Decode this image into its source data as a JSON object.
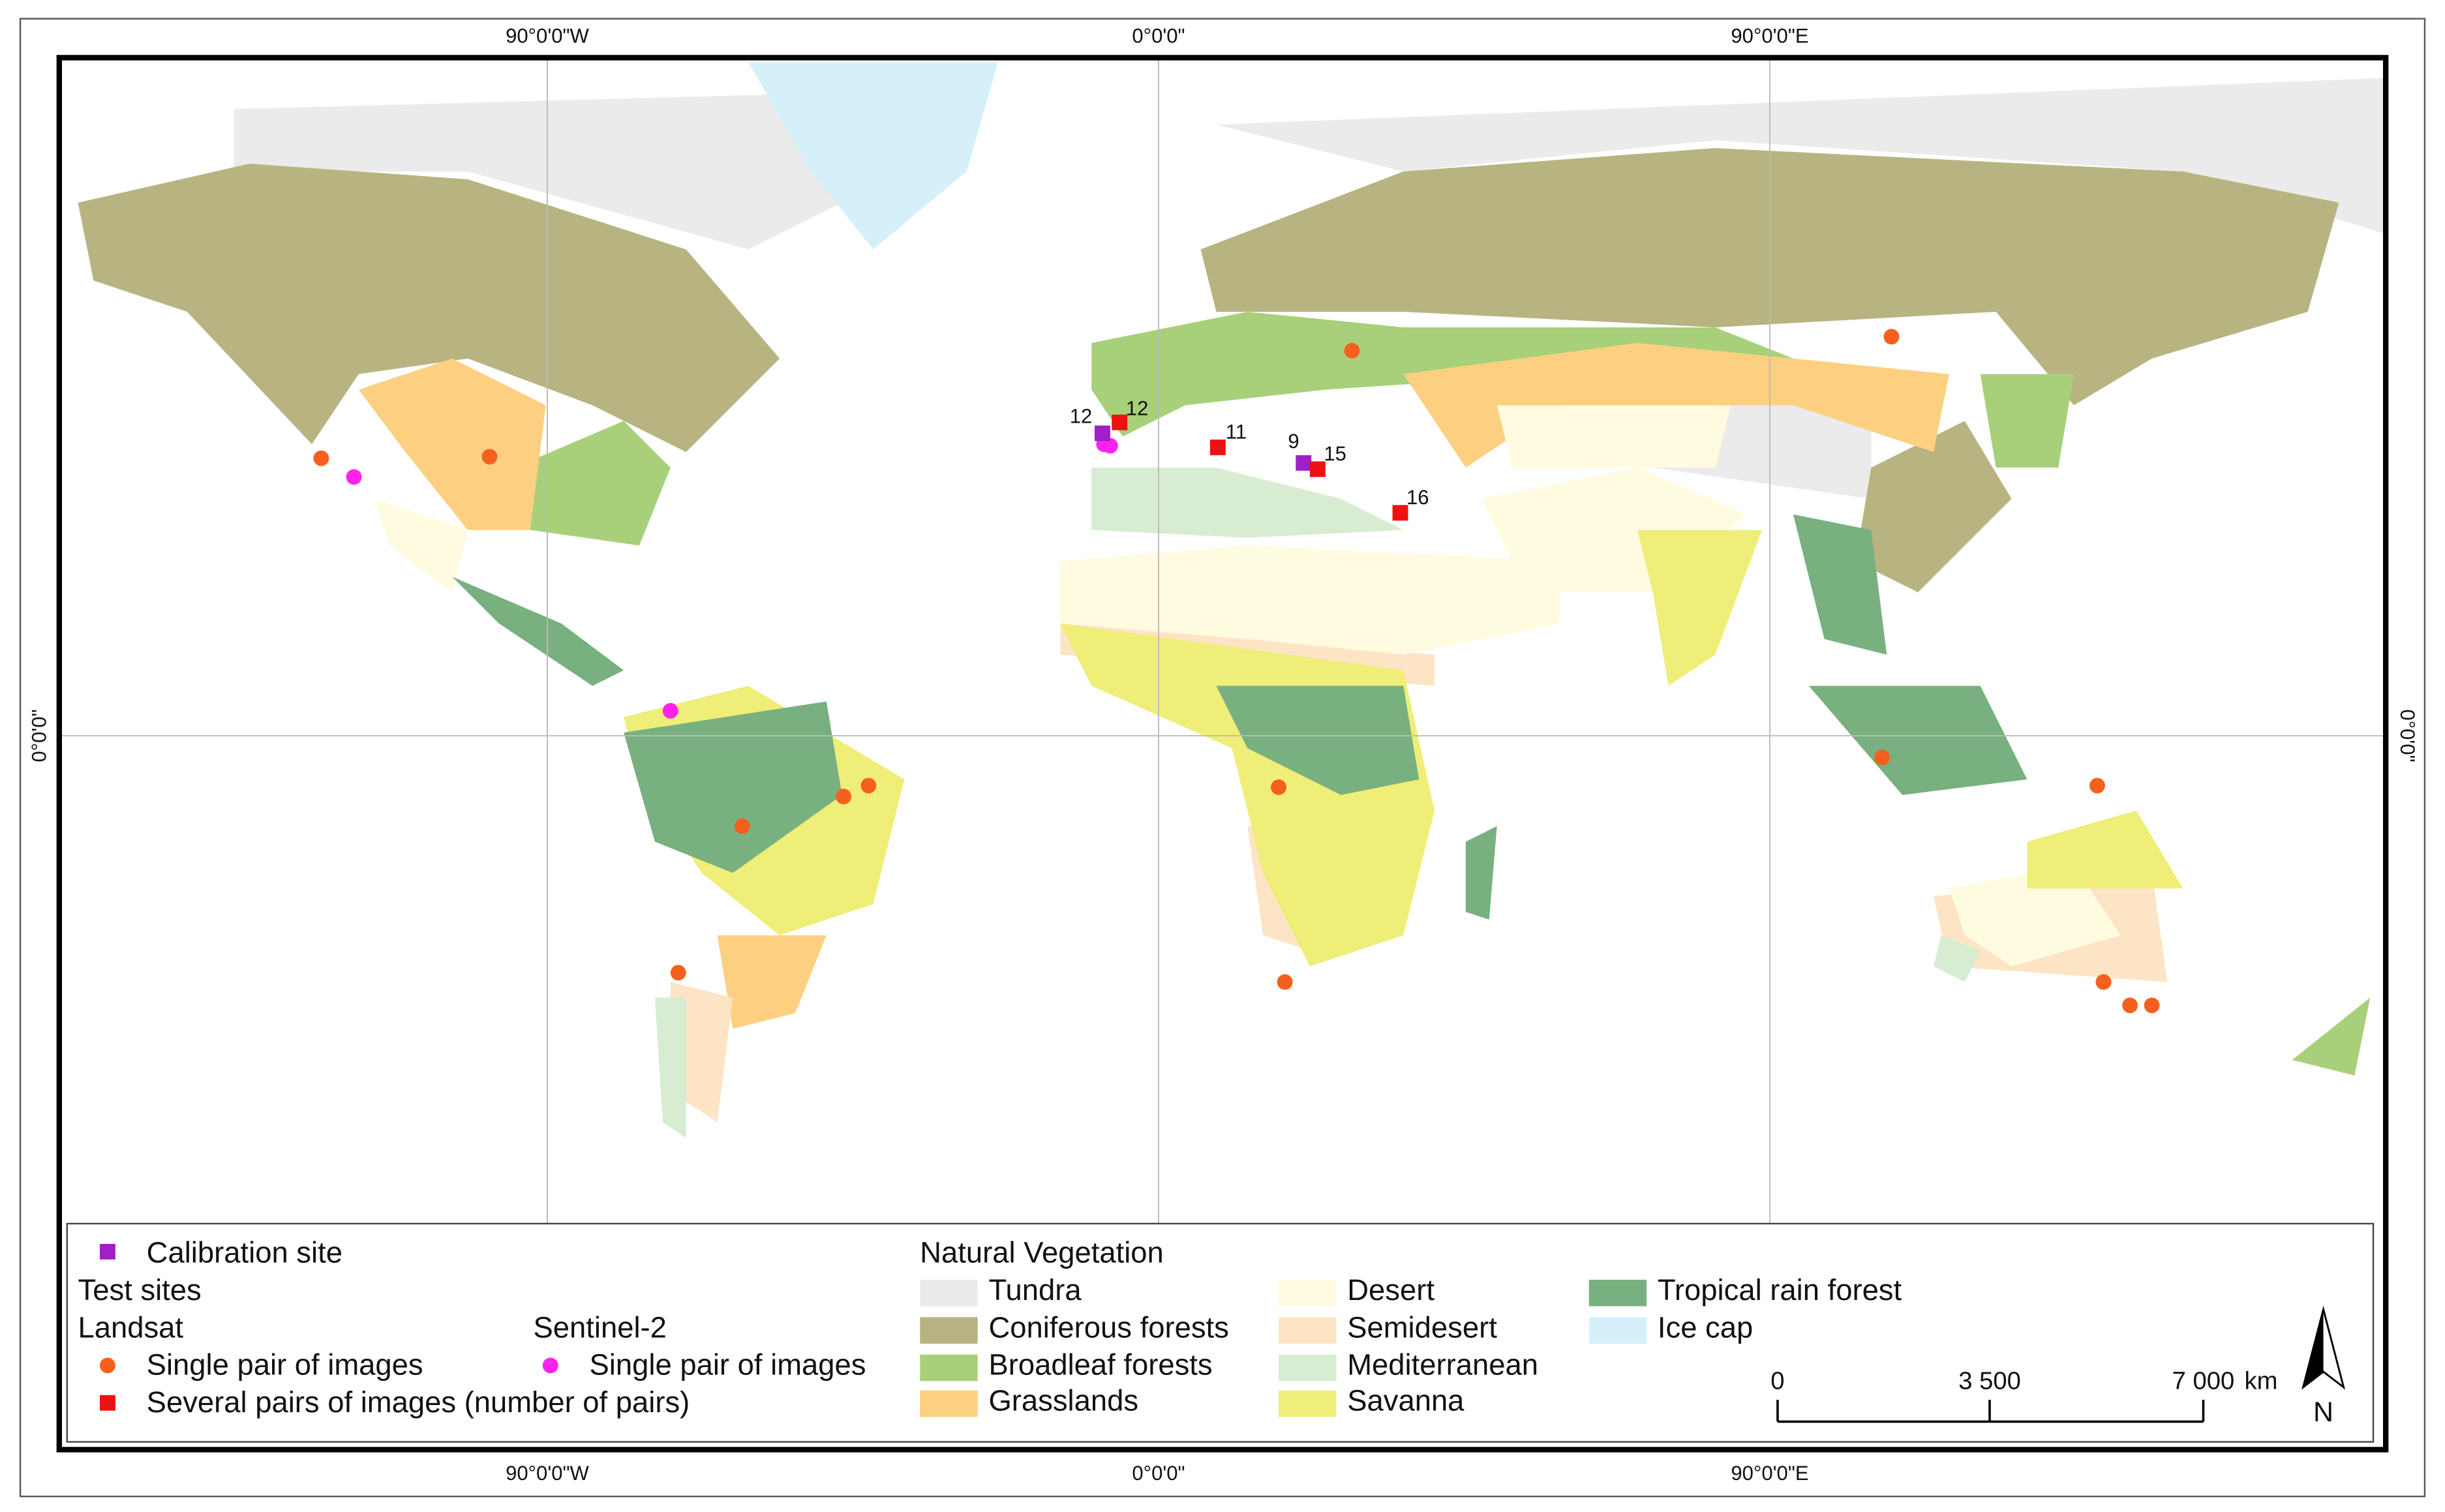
{
  "graticule": {
    "top": [
      "90°0'0\"W",
      "0°0'0\"",
      "90°0'0\"E"
    ],
    "bottom": [
      "90°0'0\"W",
      "0°0'0\"",
      "90°0'0\"E"
    ],
    "left": "0°0'0\"",
    "right": "0°0'0\""
  },
  "site_labels": [
    "12",
    "12",
    "11",
    "9",
    "15",
    "16"
  ],
  "legend": {
    "calibration": "Calibration site",
    "test_sites": "Test sites",
    "landsat": "Landsat",
    "landsat_single": "Single pair of images",
    "landsat_several": "Several pairs of images (number of pairs)",
    "sentinel": "Sentinel-2",
    "sentinel_single": "Single pair of images",
    "site_colors": {
      "calibration": "#a020c8",
      "single": "#f5601e",
      "several": "#ee1111",
      "sentinel": "#ff22ee"
    },
    "vegetation_title": "Natural Vegetation",
    "vegetation": [
      {
        "name": "Tundra",
        "color": "#ebebeb"
      },
      {
        "name": "Coniferous forests",
        "color": "#b8b482"
      },
      {
        "name": "Broadleaf forests",
        "color": "#a8d07a"
      },
      {
        "name": "Grasslands",
        "color": "#fcd080"
      },
      {
        "name": "Desert",
        "color": "#fffbe0"
      },
      {
        "name": "Semidesert",
        "color": "#fce4c4"
      },
      {
        "name": "Mediterranean",
        "color": "#d8ecd2"
      },
      {
        "name": "Savanna",
        "color": "#eeee78"
      },
      {
        "name": "Tropical rain forest",
        "color": "#78b080"
      },
      {
        "name": "Ice cap",
        "color": "#d6f0fa"
      }
    ]
  },
  "scale_bar": {
    "labels": [
      "0",
      "3 500",
      "7 000"
    ],
    "unit": "km"
  },
  "north": "N"
}
